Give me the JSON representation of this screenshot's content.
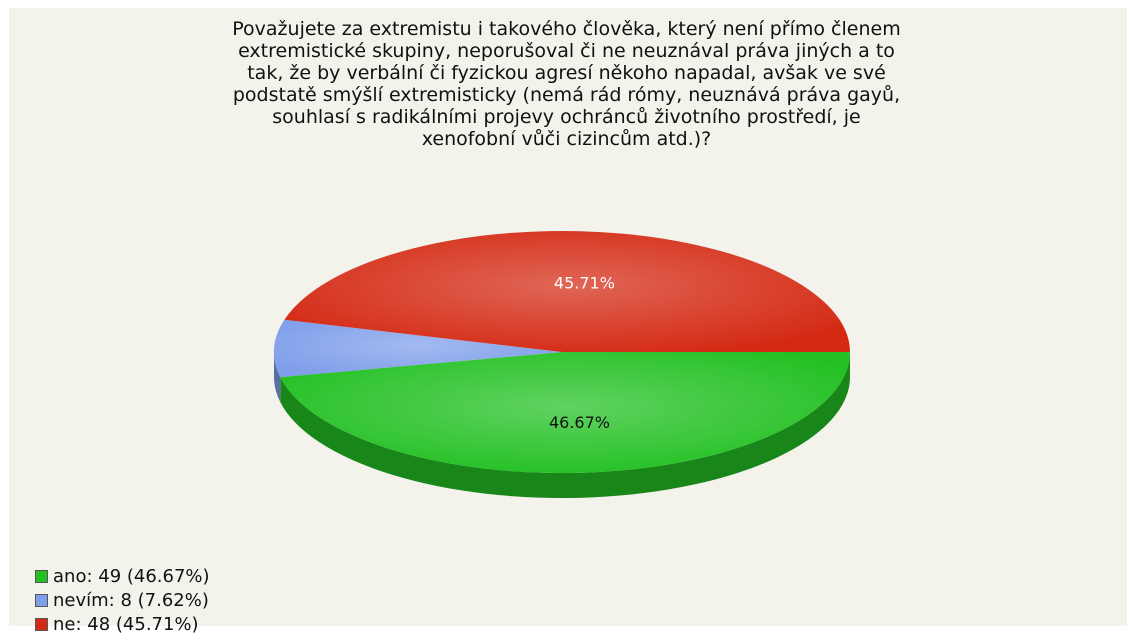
{
  "chart_data": {
    "type": "pie",
    "title": "Považujete za extremistu i takového člověka, který není přímo členem\nextremistické skupiny, neporušoval či ne neuznával práva jiných a to\ntak, že by verbální či fyzickou agresí někoho napadal, avšak ve své\npodstatě smýšlí extremisticky (nemá rád rómy, neuznává práva gayů,\nsouhlasí s radikálními projevy ochránců životního prostředí, je\nxenofobní vůči cizincům atd.)?",
    "legend_position": "bottom-left",
    "slices": [
      {
        "name": "ano",
        "value": 49,
        "percent": 46.67,
        "label": "46.67%",
        "legend": "ano: 49 (46.67%)",
        "color": "#22c022",
        "label_color": "#111111"
      },
      {
        "name": "nevím",
        "value": 8,
        "percent": 7.62,
        "label": "",
        "legend": "nevím: 8 (7.62%)",
        "color": "#7f9fea",
        "label_color": "#111111"
      },
      {
        "name": "ne",
        "value": 48,
        "percent": 45.71,
        "label": "45.71%",
        "legend": "ne: 48 (45.71%)",
        "color": "#d42a14",
        "label_color": "#ffffff"
      }
    ]
  }
}
